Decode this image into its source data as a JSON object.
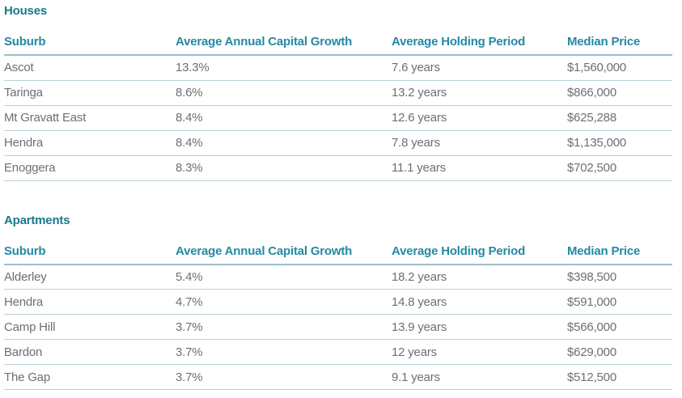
{
  "page": {
    "title_color": "#17798d",
    "header_color": "#2489a4",
    "body_text_color": "#6e6f72",
    "header_rule_color": "#9dbecb",
    "row_rule_color": "#b9d0da"
  },
  "tables": [
    {
      "title": "Houses",
      "columns": [
        "Suburb",
        "Average Annual Capital Growth",
        "Average Holding Period",
        "Median Price"
      ],
      "rows": [
        [
          "Ascot",
          "13.3%",
          "7.6 years",
          "$1,560,000"
        ],
        [
          "Taringa",
          "8.6%",
          "13.2 years",
          "$866,000"
        ],
        [
          "Mt Gravatt East",
          "8.4%",
          "12.6 years",
          "$625,288"
        ],
        [
          "Hendra",
          "8.4%",
          "7.8 years",
          "$1,135,000"
        ],
        [
          "Enoggera",
          "8.3%",
          "11.1 years",
          "$702,500"
        ]
      ]
    },
    {
      "title": "Apartments",
      "columns": [
        "Suburb",
        "Average Annual Capital Growth",
        "Average Holding Period",
        "Median Price"
      ],
      "rows": [
        [
          "Alderley",
          "5.4%",
          "18.2 years",
          "$398,500"
        ],
        [
          "Hendra",
          "4.7%",
          "14.8 years",
          "$591,000"
        ],
        [
          "Camp Hill",
          "3.7%",
          "13.9 years",
          "$566,000"
        ],
        [
          "Bardon",
          "3.7%",
          "12 years",
          "$629,000"
        ],
        [
          "The Gap",
          "3.7%",
          "9.1 years",
          "$512,500"
        ]
      ]
    }
  ]
}
